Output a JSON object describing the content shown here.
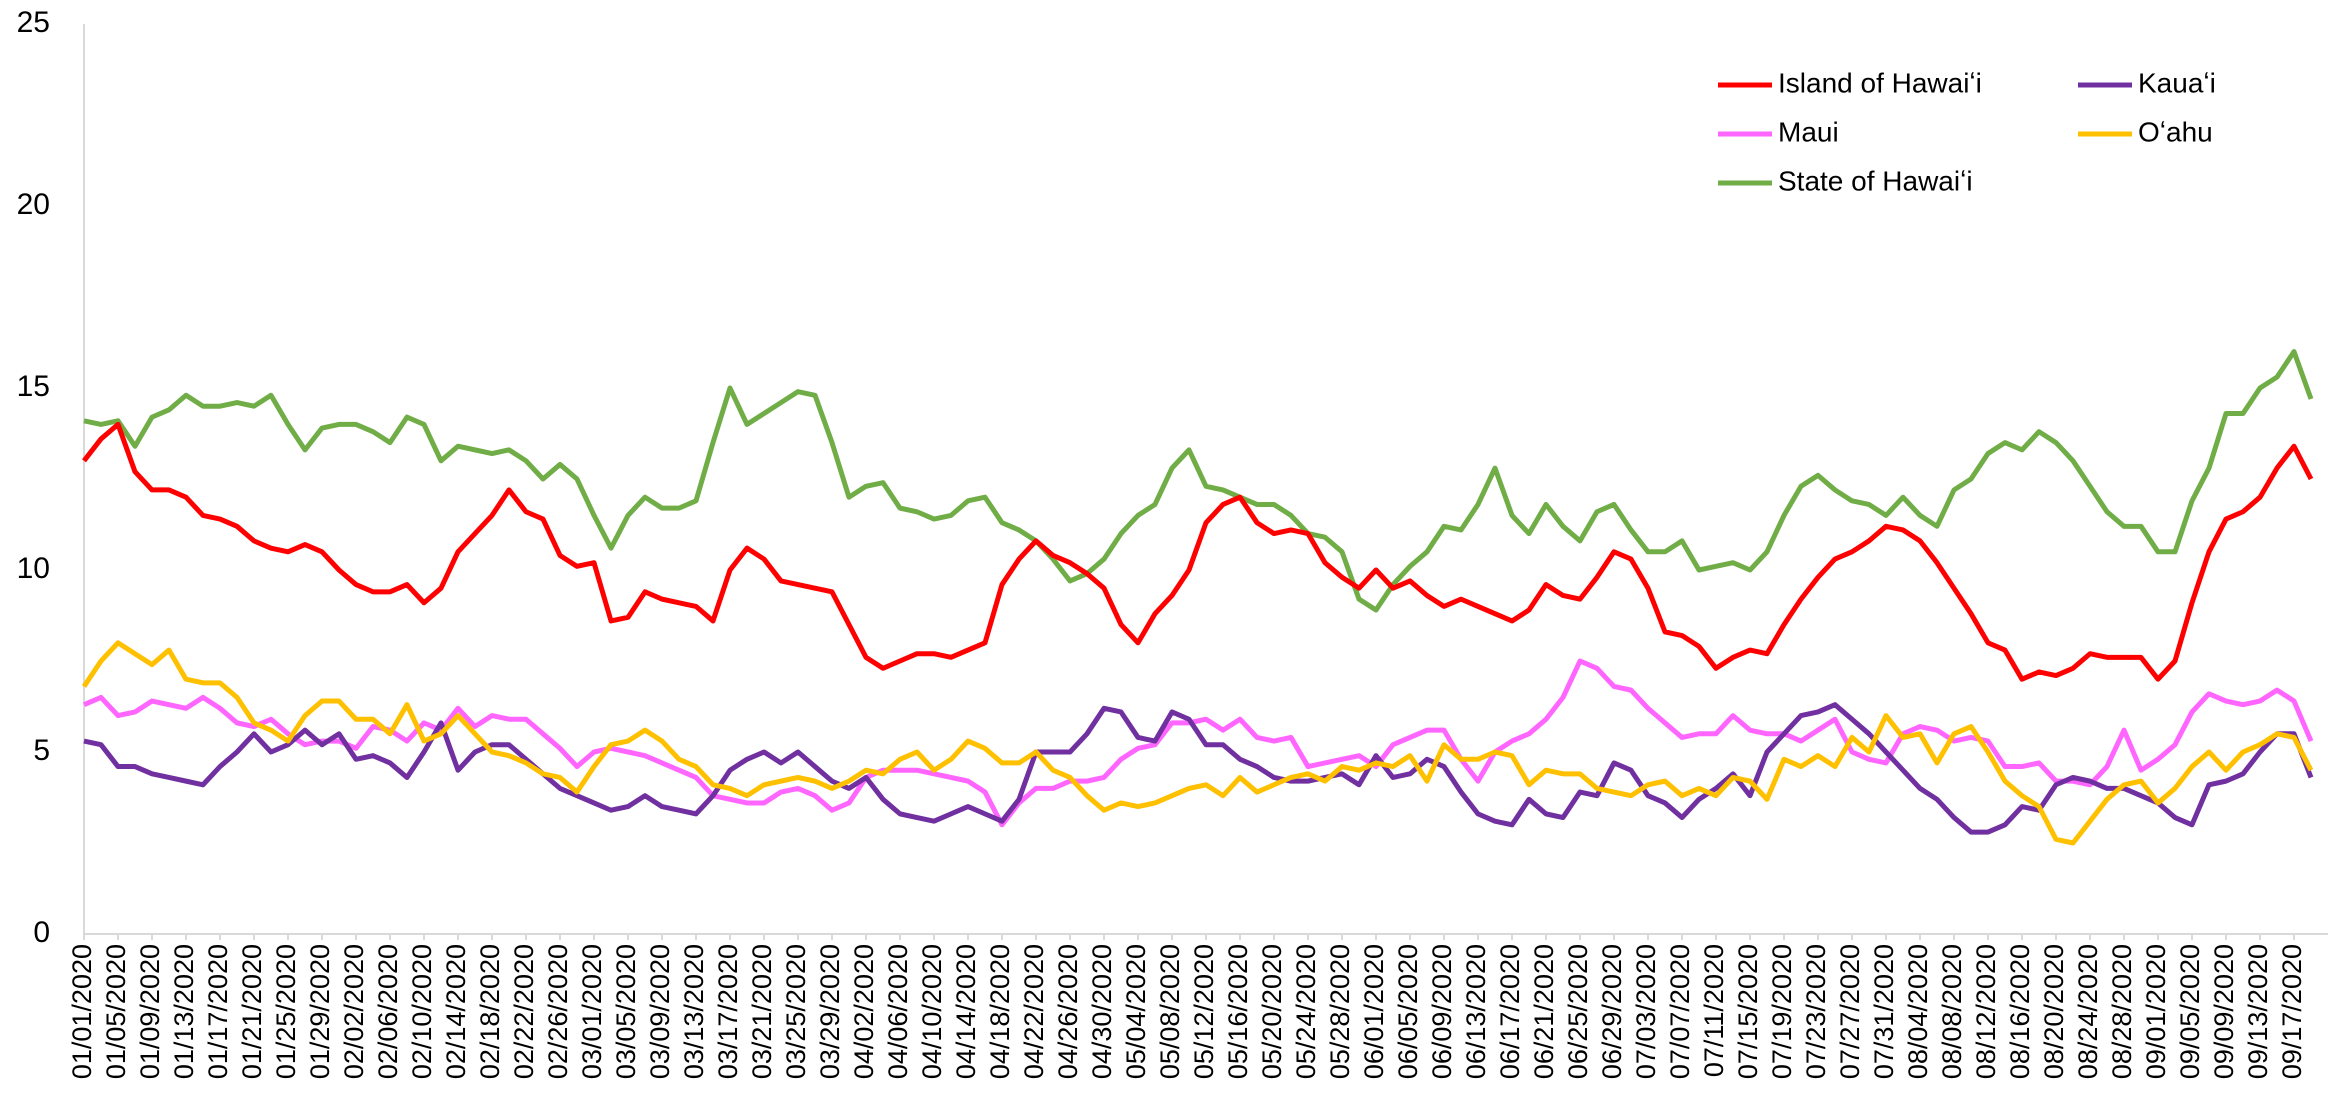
{
  "chart_data": {
    "type": "line",
    "categories": [
      "01/01",
      null,
      "01/05",
      null,
      "01/09",
      null,
      "01/13",
      null,
      "01/17",
      null,
      "01/21",
      null,
      "01/25",
      null,
      "01/29",
      null,
      "02/02",
      null,
      "02/06",
      null,
      "02/10",
      null,
      "02/14",
      null,
      "02/18",
      null,
      "02/22",
      null,
      "02/26",
      null,
      "03/01",
      null,
      "03/05",
      null,
      "03/09",
      null,
      "03/13",
      null,
      "03/17",
      null,
      "03/21",
      null,
      "03/25",
      null,
      "03/29",
      null,
      "04/02",
      null,
      "04/06",
      null,
      "04/10",
      null,
      "04/14",
      null,
      "04/18",
      null,
      "04/22",
      null,
      "04/26",
      null,
      "04/30",
      null,
      "05/04",
      null,
      "05/08",
      null,
      "05/12",
      null,
      "05/16",
      null,
      "05/20",
      null,
      "05/24",
      null,
      "05/28",
      null,
      "06/01",
      null,
      "06/05",
      null,
      "06/09",
      null,
      "06/13",
      null,
      "06/17",
      null,
      "06/21",
      null,
      "06/25",
      null,
      "06/29",
      null,
      "07/03",
      null,
      "07/07",
      null,
      "07/11",
      null,
      "07/15",
      null,
      "07/19",
      null,
      "07/23",
      null,
      "07/27",
      null,
      "07/31",
      null,
      "08/04",
      null,
      "08/08",
      null,
      "08/12",
      null,
      "08/16",
      null,
      "08/20",
      null,
      "08/24",
      null,
      "08/28",
      null,
      "09/01",
      null,
      "09/05",
      null,
      "09/09",
      null,
      "09/13",
      null,
      "09/17",
      null
    ],
    "category_labels": [
      "01/01/2020",
      "01/05/2020",
      "01/09/2020",
      "01/13/2020",
      "01/17/2020",
      "01/21/2020",
      "01/25/2020",
      "01/29/2020",
      "02/02/2020",
      "02/06/2020",
      "02/10/2020",
      "02/14/2020",
      "02/18/2020",
      "02/22/2020",
      "02/26/2020",
      "03/01/2020",
      "03/05/2020",
      "03/09/2020",
      "03/13/2020",
      "03/17/2020",
      "03/21/2020",
      "03/25/2020",
      "03/29/2020",
      "04/02/2020",
      "04/06/2020",
      "04/10/2020",
      "04/14/2020",
      "04/18/2020",
      "04/22/2020",
      "04/26/2020",
      "04/30/2020",
      "05/04/2020",
      "05/08/2020",
      "05/12/2020",
      "05/16/2020",
      "05/20/2020",
      "05/24/2020",
      "05/28/2020",
      "06/01/2020",
      "06/05/2020",
      "06/09/2020",
      "06/13/2020",
      "06/17/2020",
      "06/21/2020",
      "06/25/2020",
      "06/29/2020",
      "07/03/2020",
      "07/07/2020",
      "07/11/2020",
      "07/15/2020",
      "07/19/2020",
      "07/23/2020",
      "07/27/2020",
      "07/31/2020",
      "08/04/2020",
      "08/08/2020",
      "08/12/2020",
      "08/16/2020",
      "08/20/2020",
      "08/24/2020",
      "08/28/2020",
      "09/01/2020",
      "09/05/2020",
      "09/09/2020",
      "09/13/2020",
      "09/17/2020"
    ],
    "ylim": [
      0,
      25
    ],
    "yticks": [
      0,
      5,
      10,
      15,
      20,
      25
    ],
    "grid": false,
    "legend": "top-right",
    "series": [
      {
        "name": "Island of Hawaiʻi",
        "color": "#ff0000",
        "values": [
          13.0,
          13.6,
          14.0,
          12.7,
          12.2,
          12.2,
          12.0,
          11.5,
          11.4,
          11.2,
          10.8,
          10.6,
          10.5,
          10.7,
          10.5,
          10.0,
          9.6,
          9.4,
          9.4,
          9.6,
          9.1,
          9.5,
          10.5,
          11.0,
          11.5,
          12.2,
          11.6,
          11.4,
          10.4,
          10.1,
          10.2,
          8.6,
          8.7,
          9.4,
          9.2,
          9.1,
          9.0,
          8.6,
          10.0,
          10.6,
          10.3,
          9.7,
          9.6,
          9.5,
          9.4,
          8.5,
          7.6,
          7.3,
          7.5,
          7.7,
          7.7,
          7.6,
          7.8,
          8.0,
          9.6,
          10.3,
          10.8,
          10.4,
          10.2,
          9.9,
          9.5,
          8.5,
          8.0,
          8.8,
          9.3,
          10.0,
          11.3,
          11.8,
          12.0,
          11.3,
          11.0,
          11.1,
          11.0,
          10.2,
          9.8,
          9.5,
          10.0,
          9.5,
          9.7,
          9.3,
          9.0,
          9.2,
          9.0,
          8.8,
          8.6,
          8.9,
          9.6,
          9.3,
          9.2,
          9.8,
          10.5,
          10.3,
          9.5,
          8.3,
          8.2,
          7.9,
          7.3,
          7.6,
          7.8,
          7.7,
          8.5,
          9.2,
          9.8,
          10.3,
          10.5,
          10.8,
          11.2,
          11.1,
          10.8,
          10.2,
          9.5,
          8.8,
          8.0,
          7.8,
          7.0,
          7.2,
          7.1,
          7.3,
          7.7,
          7.6,
          7.6,
          7.6,
          7.0,
          7.5,
          9.1,
          10.5,
          11.4,
          11.6,
          12.0,
          12.8,
          13.4,
          12.5
        ]
      },
      {
        "name": "Kauaʻi",
        "color": "#7030a0",
        "values": [
          5.3,
          5.2,
          4.6,
          4.6,
          4.4,
          4.3,
          4.2,
          4.1,
          4.6,
          5.0,
          5.5,
          5.0,
          5.2,
          5.6,
          5.2,
          5.5,
          4.8,
          4.9,
          4.7,
          4.3,
          5.0,
          5.8,
          4.5,
          5.0,
          5.2,
          5.2,
          4.8,
          4.4,
          4.0,
          3.8,
          3.6,
          3.4,
          3.5,
          3.8,
          3.5,
          3.4,
          3.3,
          3.8,
          4.5,
          4.8,
          5.0,
          4.7,
          5.0,
          4.6,
          4.2,
          4.0,
          4.3,
          3.7,
          3.3,
          3.2,
          3.1,
          3.3,
          3.5,
          3.3,
          3.1,
          3.7,
          5.0,
          5.0,
          5.0,
          5.5,
          6.2,
          6.1,
          5.4,
          5.3,
          6.1,
          5.9,
          5.2,
          5.2,
          4.8,
          4.6,
          4.3,
          4.2,
          4.2,
          4.3,
          4.4,
          4.1,
          4.9,
          4.3,
          4.4,
          4.8,
          4.6,
          3.9,
          3.3,
          3.1,
          3.0,
          3.7,
          3.3,
          3.2,
          3.9,
          3.8,
          4.7,
          4.5,
          3.8,
          3.6,
          3.2,
          3.7,
          4.0,
          4.4,
          3.8,
          5.0,
          5.5,
          6.0,
          6.1,
          6.3,
          5.9,
          5.5,
          5.0,
          4.5,
          4.0,
          3.7,
          3.2,
          2.8,
          2.8,
          3.0,
          3.5,
          3.4,
          4.1,
          4.3,
          4.2,
          4.0,
          4.0,
          3.8,
          3.6,
          3.2,
          3.0,
          4.1,
          4.2,
          4.4,
          5.0,
          5.5,
          5.5,
          4.3
        ]
      },
      {
        "name": "Maui",
        "color": "#ff66ff",
        "values": [
          6.3,
          6.5,
          6.0,
          6.1,
          6.4,
          6.3,
          6.2,
          6.5,
          6.2,
          5.8,
          5.7,
          5.9,
          5.5,
          5.2,
          5.3,
          5.3,
          5.1,
          5.7,
          5.6,
          5.3,
          5.8,
          5.6,
          6.2,
          5.7,
          6.0,
          5.9,
          5.9,
          5.5,
          5.1,
          4.6,
          5.0,
          5.1,
          5.0,
          4.9,
          4.7,
          4.5,
          4.3,
          3.8,
          3.7,
          3.6,
          3.6,
          3.9,
          4.0,
          3.8,
          3.4,
          3.6,
          4.3,
          4.5,
          4.5,
          4.5,
          4.4,
          4.3,
          4.2,
          3.9,
          3.0,
          3.6,
          4.0,
          4.0,
          4.2,
          4.2,
          4.3,
          4.8,
          5.1,
          5.2,
          5.8,
          5.8,
          5.9,
          5.6,
          5.9,
          5.4,
          5.3,
          5.4,
          4.6,
          4.7,
          4.8,
          4.9,
          4.6,
          5.2,
          5.4,
          5.6,
          5.6,
          4.8,
          4.2,
          5.0,
          5.3,
          5.5,
          5.9,
          6.5,
          7.5,
          7.3,
          6.8,
          6.7,
          6.2,
          5.8,
          5.4,
          5.5,
          5.5,
          6.0,
          5.6,
          5.5,
          5.5,
          5.3,
          5.6,
          5.9,
          5.0,
          4.8,
          4.7,
          5.5,
          5.7,
          5.6,
          5.3,
          5.4,
          5.3,
          4.6,
          4.6,
          4.7,
          4.2,
          4.2,
          4.1,
          4.6,
          5.6,
          4.5,
          4.8,
          5.2,
          6.1,
          6.6,
          6.4,
          6.3,
          6.4,
          6.7,
          6.4,
          5.3
        ]
      },
      {
        "name": "Oʻahu",
        "color": "#ffc000",
        "values": [
          6.8,
          7.5,
          8.0,
          7.7,
          7.4,
          7.8,
          7.0,
          6.9,
          6.9,
          6.5,
          5.8,
          5.6,
          5.3,
          6.0,
          6.4,
          6.4,
          5.9,
          5.9,
          5.5,
          6.3,
          5.3,
          5.5,
          6.0,
          5.5,
          5.0,
          4.9,
          4.7,
          4.4,
          4.3,
          3.9,
          4.6,
          5.2,
          5.3,
          5.6,
          5.3,
          4.8,
          4.6,
          4.1,
          4.0,
          3.8,
          4.1,
          4.2,
          4.3,
          4.2,
          4.0,
          4.2,
          4.5,
          4.4,
          4.8,
          5.0,
          4.5,
          4.8,
          5.3,
          5.1,
          4.7,
          4.7,
          5.0,
          4.5,
          4.3,
          3.8,
          3.4,
          3.6,
          3.5,
          3.6,
          3.8,
          4.0,
          4.1,
          3.8,
          4.3,
          3.9,
          4.1,
          4.3,
          4.4,
          4.2,
          4.6,
          4.5,
          4.7,
          4.6,
          4.9,
          4.2,
          5.2,
          4.8,
          4.8,
          5.0,
          4.9,
          4.1,
          4.5,
          4.4,
          4.4,
          4.0,
          3.9,
          3.8,
          4.1,
          4.2,
          3.8,
          4.0,
          3.8,
          4.3,
          4.2,
          3.7,
          4.8,
          4.6,
          4.9,
          4.6,
          5.4,
          5.0,
          6.0,
          5.4,
          5.5,
          4.7,
          5.5,
          5.7,
          5.0,
          4.2,
          3.8,
          3.5,
          2.6,
          2.5,
          3.1,
          3.7,
          4.1,
          4.2,
          3.6,
          4.0,
          4.6,
          5.0,
          4.5,
          5.0,
          5.2,
          5.5,
          5.4,
          4.5
        ]
      },
      {
        "name": "State of Hawaiʻi",
        "color": "#70ad47",
        "values": [
          14.1,
          14.0,
          14.1,
          13.4,
          14.2,
          14.4,
          14.8,
          14.5,
          14.5,
          14.6,
          14.5,
          14.8,
          14.0,
          13.3,
          13.9,
          14.0,
          14.0,
          13.8,
          13.5,
          14.2,
          14.0,
          13.0,
          13.4,
          13.3,
          13.2,
          13.3,
          13.0,
          12.5,
          12.9,
          12.5,
          11.5,
          10.6,
          11.5,
          12.0,
          11.7,
          11.7,
          11.9,
          13.5,
          15.0,
          14.0,
          14.3,
          14.6,
          14.9,
          14.8,
          13.5,
          12.0,
          12.3,
          12.4,
          11.7,
          11.6,
          11.4,
          11.5,
          11.9,
          12.0,
          11.3,
          11.1,
          10.8,
          10.3,
          9.7,
          9.9,
          10.3,
          11.0,
          11.5,
          11.8,
          12.8,
          13.3,
          12.3,
          12.2,
          12.0,
          11.8,
          11.8,
          11.5,
          11.0,
          10.9,
          10.5,
          9.2,
          8.9,
          9.6,
          10.1,
          10.5,
          11.2,
          11.1,
          11.8,
          12.8,
          11.5,
          11.0,
          11.8,
          11.2,
          10.8,
          11.6,
          11.8,
          11.1,
          10.5,
          10.5,
          10.8,
          10.0,
          10.1,
          10.2,
          10.0,
          10.5,
          11.5,
          12.3,
          12.6,
          12.2,
          11.9,
          11.8,
          11.5,
          12.0,
          11.5,
          11.2,
          12.2,
          12.5,
          13.2,
          13.5,
          13.3,
          13.8,
          13.5,
          13.0,
          12.3,
          11.6,
          11.2,
          11.2,
          10.5,
          10.5,
          11.9,
          12.8,
          14.3,
          14.3,
          15.0,
          15.3,
          16.0,
          14.7
        ]
      }
    ]
  }
}
